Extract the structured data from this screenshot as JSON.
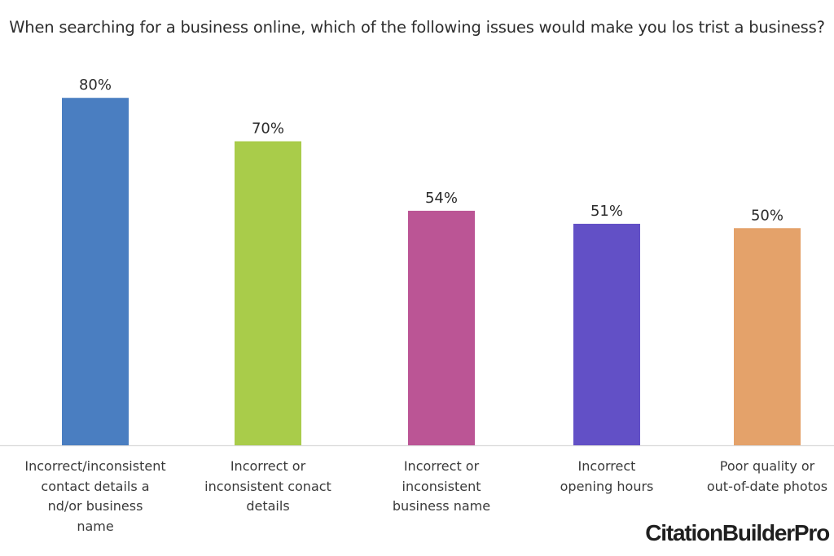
{
  "chart_data": {
    "type": "bar",
    "title": "When searching for a business online, which of the following issues would  make you los trist a business?",
    "categories": [
      "Incorrect/inconsistent\ncontact details a\nnd/or business\nname",
      "Incorrect or\ninconsistent conact details",
      "Incorrect or\ninconsistent\nbusiness name",
      "Incorrect\nopening hours",
      "Poor quality or\nout-of-date photos"
    ],
    "values": [
      80,
      70,
      54,
      51,
      50
    ],
    "data_labels": [
      "80%",
      "70%",
      "54%",
      "51%",
      "50%"
    ],
    "colors": [
      "#4a7ec1",
      "#a9cc4a",
      "#bb5595",
      "#6250c6",
      "#e4a26a"
    ],
    "ylim": [
      0,
      100
    ],
    "xlabel": "",
    "ylabel": "",
    "grid": false,
    "legend": "none"
  },
  "branding": {
    "logo_text": "CitationBuilderPro"
  }
}
